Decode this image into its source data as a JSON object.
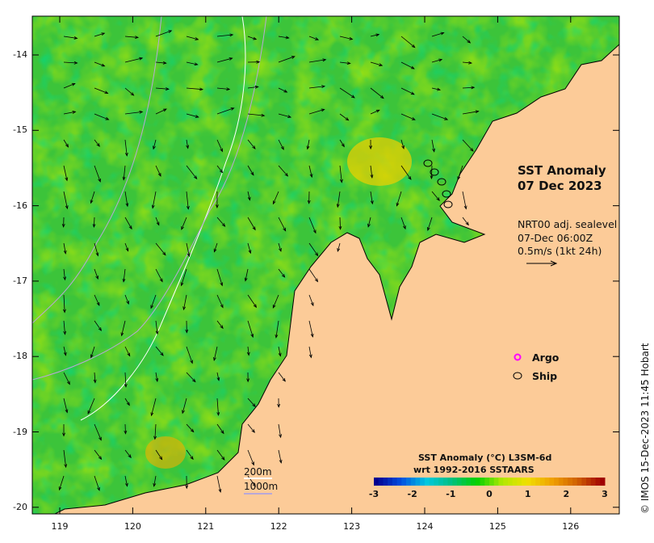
{
  "title": {
    "line1": "SST Anomaly",
    "line2": "07 Dec 2023"
  },
  "current_info": {
    "line1": "NRT00 adj. sealevel",
    "line2": "07-Dec 06:00Z",
    "line3": "0.5m/s (1kt 24h)"
  },
  "legend": {
    "argo": "Argo",
    "ship": "Ship",
    "argo_color": "#ff00ff"
  },
  "contours": {
    "c200": "200m",
    "c1000": "1000m",
    "c200_color": "#ffffff",
    "c1000_color": "#b8a8d8"
  },
  "colorbar": {
    "title1": "SST Anomaly (°C) L3SM-6d",
    "title2": "wrt 1992-2016 SSTAARS",
    "ticks": [
      "-3",
      "-2",
      "-1",
      "0",
      "1",
      "2",
      "3"
    ],
    "min": -3,
    "max": 3
  },
  "axes": {
    "x_ticks": [
      "119",
      "120",
      "121",
      "122",
      "123",
      "124",
      "125",
      "126"
    ],
    "y_ticks": [
      "-14",
      "-15",
      "-16",
      "-17",
      "-18",
      "-19",
      "-20"
    ]
  },
  "credit": "© IMOS 15-Dec-2023 11:45 Hobart",
  "land_color": "#fccb98"
}
